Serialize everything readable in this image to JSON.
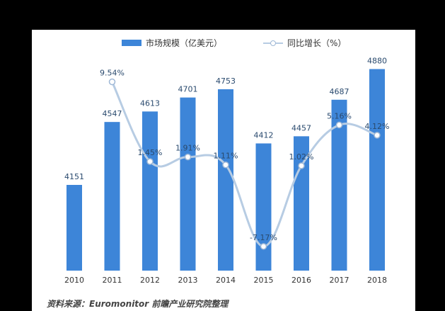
{
  "legend": {
    "bar_label": "市场规模（亿美元）",
    "line_label": "同比增长（%）"
  },
  "source": "资料来源：Euromonitor 前瞻产业研究院整理",
  "colors": {
    "bar": "#3d85d8",
    "line": "#b7cce3",
    "marker_stroke": "#9fb8d6",
    "label": "#2a4a6e",
    "background": "#ffffff"
  },
  "chart_data": {
    "type": "bar",
    "categories": [
      "2010",
      "2011",
      "2012",
      "2013",
      "2014",
      "2015",
      "2016",
      "2017",
      "2018"
    ],
    "series": [
      {
        "name": "市场规模（亿美元）",
        "type": "bar",
        "values": [
          4151,
          4547,
          4613,
          4701,
          4753,
          4412,
          4457,
          4687,
          4880
        ],
        "labels": [
          "4151",
          "4547",
          "4613",
          "4701",
          "4753",
          "4412",
          "4457",
          "4687",
          "4880"
        ]
      },
      {
        "name": "同比增长（%）",
        "type": "line",
        "values": [
          null,
          9.54,
          1.45,
          1.91,
          1.11,
          -7.17,
          1.02,
          5.16,
          4.12
        ],
        "labels": [
          "",
          "9.54%",
          "1.45%",
          "1.91%",
          "1.11%",
          "-7.17%",
          "1.02%",
          "5.16%",
          "4.12%"
        ]
      }
    ],
    "grid": false,
    "legend_position": "top-center"
  }
}
